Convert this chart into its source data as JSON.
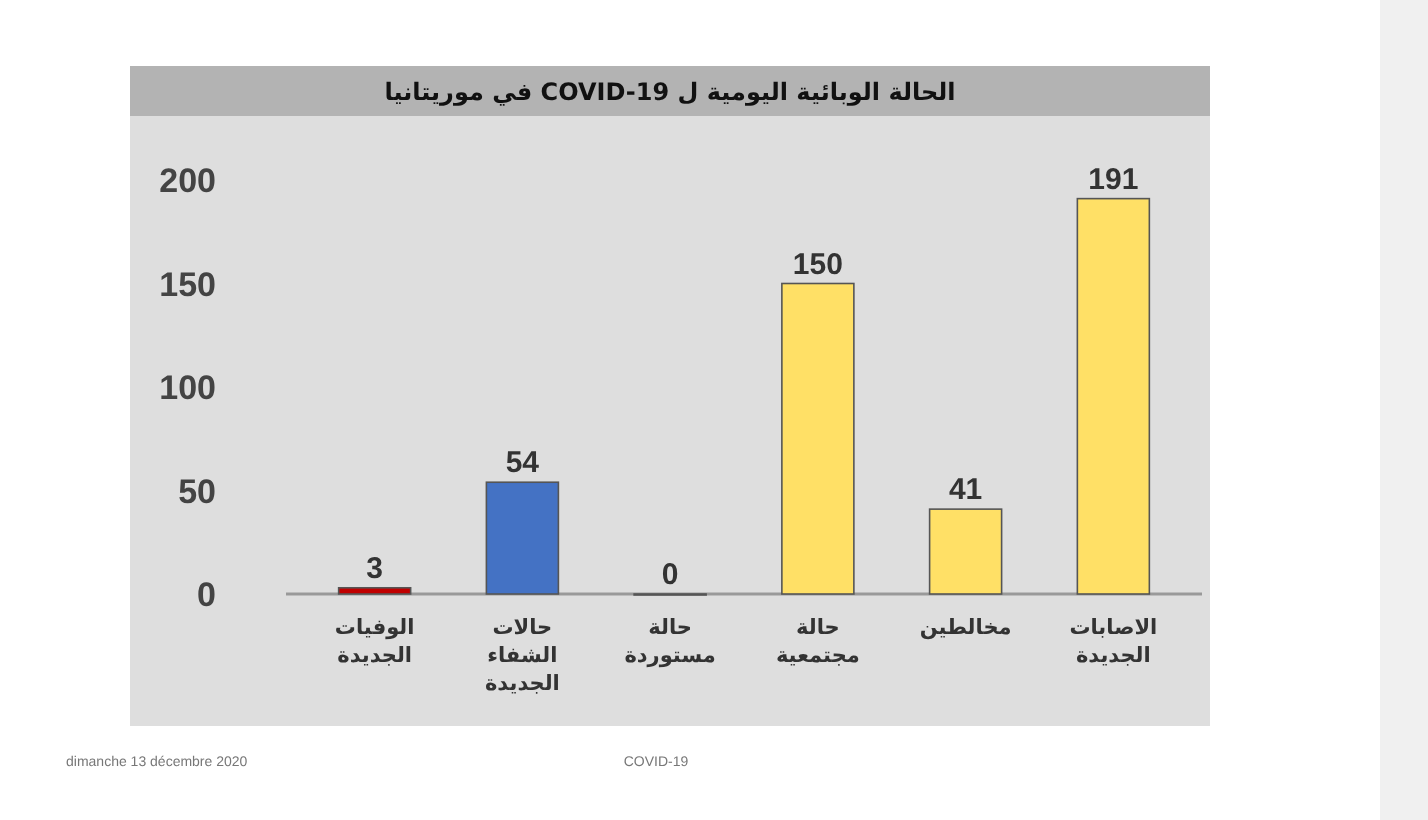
{
  "chart_data": {
    "type": "bar",
    "title": "الحالة الوبائية اليومية ل COVID-19 في موريتانيا",
    "categories": [
      "الوفيات الجديدة",
      "حالات الشفاء الجديدة",
      "حالة مستوردة",
      "حالة مجتمعية",
      "مخالطين",
      "الاصابات الجديدة"
    ],
    "values": [
      3,
      54,
      0,
      150,
      41,
      191
    ],
    "colors": [
      "#c00000",
      "#4472c4",
      "#c9a227",
      "#ffe066",
      "#ffe066",
      "#ffe066"
    ],
    "ylim": [
      0,
      200
    ],
    "yticks": [
      0,
      50,
      100,
      150,
      200
    ],
    "data_labels": true,
    "grid": false,
    "legend": false,
    "annotations": [
      "dimanche 13 décembre 2020",
      "COVID-19"
    ]
  }
}
